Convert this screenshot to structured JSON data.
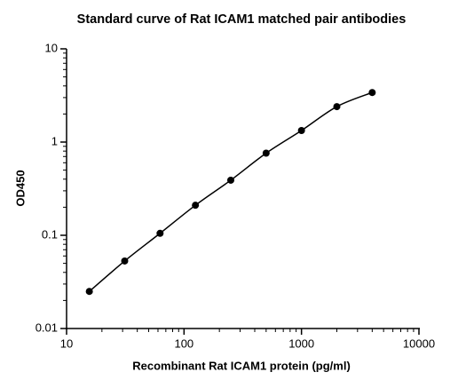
{
  "chart_data": {
    "type": "scatter",
    "title": "Standard curve of Rat ICAM1 matched pair antibodies",
    "x_label": "Recombinant Rat ICAM1 protein (pg/ml)",
    "y_label": "OD450",
    "x": [
      15.625,
      31.25,
      62.5,
      125,
      250,
      500,
      1000,
      2000,
      4000
    ],
    "series": [
      {
        "color": "#000000",
        "values": [
          0.025,
          0.053,
          0.105,
          0.21,
          0.39,
          0.76,
          1.33,
          2.4,
          3.4
        ]
      }
    ],
    "xlog": true,
    "ylog": true,
    "fit_line": true,
    "xlim": [
      10,
      10000
    ],
    "ylim": [
      0.01,
      10
    ],
    "xticks": [
      10,
      100,
      1000,
      10000
    ],
    "yticks": [
      0.01,
      0.1,
      1,
      10
    ],
    "xminorticks": [
      20,
      30,
      40,
      50,
      60,
      70,
      80,
      90,
      200,
      300,
      400,
      500,
      600,
      700,
      800,
      900,
      2000,
      3000,
      4000,
      5000,
      6000,
      7000,
      8000,
      9000
    ],
    "yminorticks": [
      0.02,
      0.03,
      0.04,
      0.05,
      0.06,
      0.07,
      0.08,
      0.09,
      0.2,
      0.3,
      0.4,
      0.5,
      0.6,
      0.7,
      0.8,
      0.9,
      2,
      3,
      4,
      5,
      6,
      7,
      8,
      9
    ]
  }
}
